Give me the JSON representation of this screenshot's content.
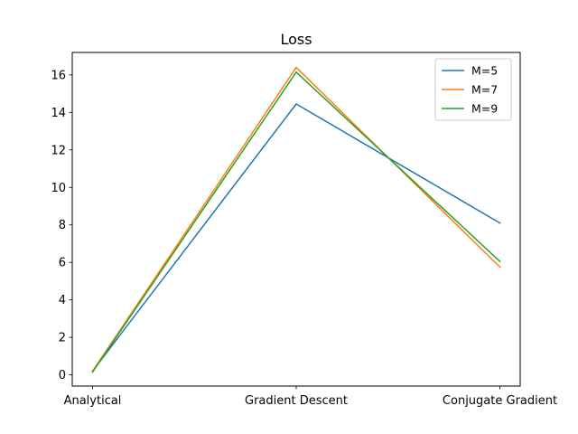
{
  "chart_data": {
    "type": "line",
    "title": "Loss",
    "xlabel": "",
    "ylabel": "",
    "categories": [
      "Analytical",
      "Gradient Descent",
      "Conjugate Gradient"
    ],
    "ylim": [
      -0.6,
      17.2
    ],
    "yticks": [
      0,
      2,
      4,
      6,
      8,
      10,
      12,
      14,
      16
    ],
    "grid": false,
    "legend_position": "top-right",
    "series": [
      {
        "name": "M=5",
        "color": "#1f77b4",
        "values": [
          0.2,
          14.45,
          8.1
        ]
      },
      {
        "name": "M=7",
        "color": "#ff7f0e",
        "values": [
          0.2,
          16.4,
          5.75
        ]
      },
      {
        "name": "M=9",
        "color": "#2ca02c",
        "values": [
          0.15,
          16.15,
          6.05
        ]
      }
    ]
  }
}
